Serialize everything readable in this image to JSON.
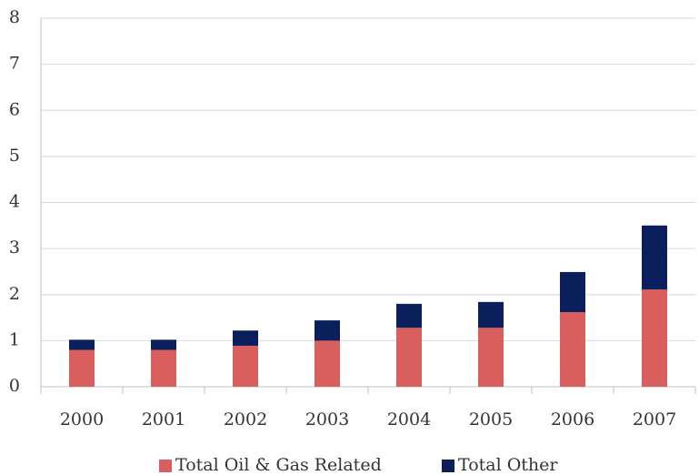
{
  "chart_data": {
    "type": "stacked_bar",
    "categories": [
      "2000",
      "2001",
      "2002",
      "2003",
      "2004",
      "2005",
      "2006",
      "2007"
    ],
    "series": [
      {
        "name": "Total Oil & Gas Related",
        "color": "#d95f5f",
        "values": [
          0.8,
          0.8,
          0.89,
          1.0,
          1.28,
          1.28,
          1.62,
          2.11
        ]
      },
      {
        "name": "Total Other",
        "color": "#0a1f5c",
        "values": [
          0.22,
          0.22,
          0.33,
          0.44,
          0.52,
          0.56,
          0.87,
          1.39
        ]
      }
    ],
    "ylim": [
      0,
      8
    ],
    "yticks": [
      0,
      1,
      2,
      3,
      4,
      5,
      6,
      7,
      8
    ],
    "grid": true,
    "legend": "bottom"
  }
}
